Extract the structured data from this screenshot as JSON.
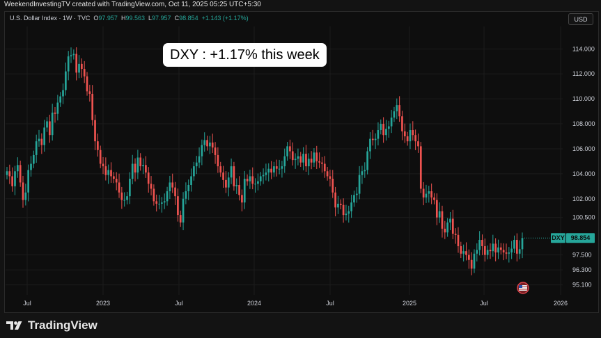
{
  "header": {
    "attribution": "WeekendInvestingTV created with TradingView.com, Oct 11, 2025 05:25 UTC+5:30"
  },
  "legend": {
    "symbol": "U.S. Dollar Index · 1W · TVC",
    "open_label": "O",
    "open": "97.957",
    "high_label": "H",
    "high": "99.563",
    "low_label": "L",
    "low": "97.957",
    "close_label": "C",
    "close": "98.854",
    "change": "+1.143 (+1.17%)"
  },
  "currency_button": "USD",
  "callout": "DXY : +1.17% this week",
  "price_tag": {
    "symbol": "DXY",
    "value": "98.854"
  },
  "brand": {
    "name": "TradingView"
  },
  "colors": {
    "up": "#26a69a",
    "down": "#ef5350",
    "background": "#0e0e0e",
    "grid": "#1c1c1c",
    "axis_text": "#d1d4dc"
  },
  "chart_data": {
    "type": "candlestick",
    "title": "U.S. Dollar Index · 1W · TVC",
    "y_ticks": [
      "114.000",
      "112.000",
      "110.000",
      "108.000",
      "106.000",
      "104.000",
      "102.000",
      "100.500",
      "97.500",
      "96.300",
      "95.100"
    ],
    "x_ticks": [
      "Jul",
      "2023",
      "Jul",
      "2024",
      "Jul",
      "2025",
      "Jul",
      "2026"
    ],
    "ylim": [
      94.3,
      115.8
    ],
    "grid": true,
    "last": 98.854,
    "weekly_closes": [
      104.2,
      103.8,
      103.0,
      104.2,
      104.7,
      103.3,
      101.9,
      102.5,
      104.3,
      104.8,
      105.5,
      106.6,
      106.8,
      106.3,
      107.7,
      108.2,
      107.1,
      108.9,
      108.8,
      109.7,
      110.2,
      110.7,
      112.2,
      113.4,
      113.5,
      113.6,
      112.1,
      112.8,
      112.4,
      111.8,
      110.6,
      110.4,
      108.3,
      106.6,
      105.9,
      104.8,
      104.6,
      103.9,
      104.3,
      103.8,
      103.6,
      103.3,
      102.5,
      101.9,
      101.9,
      102.2,
      103.6,
      104.8,
      104.1,
      105.3,
      104.6,
      104.7,
      104.1,
      103.2,
      102.8,
      101.8,
      101.6,
      101.6,
      101.7,
      101.8,
      102.6,
      103.3,
      102.9,
      102.2,
      100.7,
      100.1,
      102.0,
      102.6,
      103.1,
      103.8,
      104.6,
      104.9,
      105.4,
      106.3,
      106.7,
      106.2,
      106.5,
      106.1,
      105.5,
      104.6,
      104.1,
      103.5,
      102.9,
      103.7,
      104.6,
      103.0,
      103.1,
      102.3,
      101.7,
      103.6,
      103.4,
      103.8,
      103.2,
      103.2,
      103.4,
      103.8,
      103.9,
      104.1,
      104.4,
      104.1,
      104.6,
      104.4,
      104.4,
      104.6,
      105.4,
      106.2,
      105.8,
      105.1,
      105.2,
      105.4,
      104.9,
      105.6,
      104.6,
      105.2,
      104.9,
      105.7,
      105.0,
      104.9,
      104.8,
      104.2,
      103.8,
      103.6,
      102.5,
      101.3,
      101.6,
      101.5,
      100.7,
      100.8,
      101.0,
      101.7,
      102.3,
      102.4,
      103.9,
      104.2,
      104.3,
      105.8,
      106.8,
      106.7,
      106.8,
      107.5,
      108.0,
      107.1,
      107.6,
      107.8,
      108.5,
      109.0,
      109.5,
      108.6,
      107.4,
      107.0,
      106.6,
      107.5,
      107.1,
      106.6,
      106.2,
      102.8,
      102.1,
      102.4,
      102.6,
      102.1,
      101.9,
      100.5,
      101.0,
      99.6,
      99.3,
      100.1,
      100.4,
      99.2,
      99.1,
      98.2,
      97.6,
      97.8,
      97.5,
      97.1,
      96.4,
      97.6,
      97.9,
      98.7,
      98.2,
      97.5,
      97.9,
      97.8,
      98.4,
      97.7,
      98.1,
      97.9,
      97.7,
      97.6,
      97.7,
      98.0,
      98.7,
      97.6,
      97.96,
      98.854
    ]
  }
}
